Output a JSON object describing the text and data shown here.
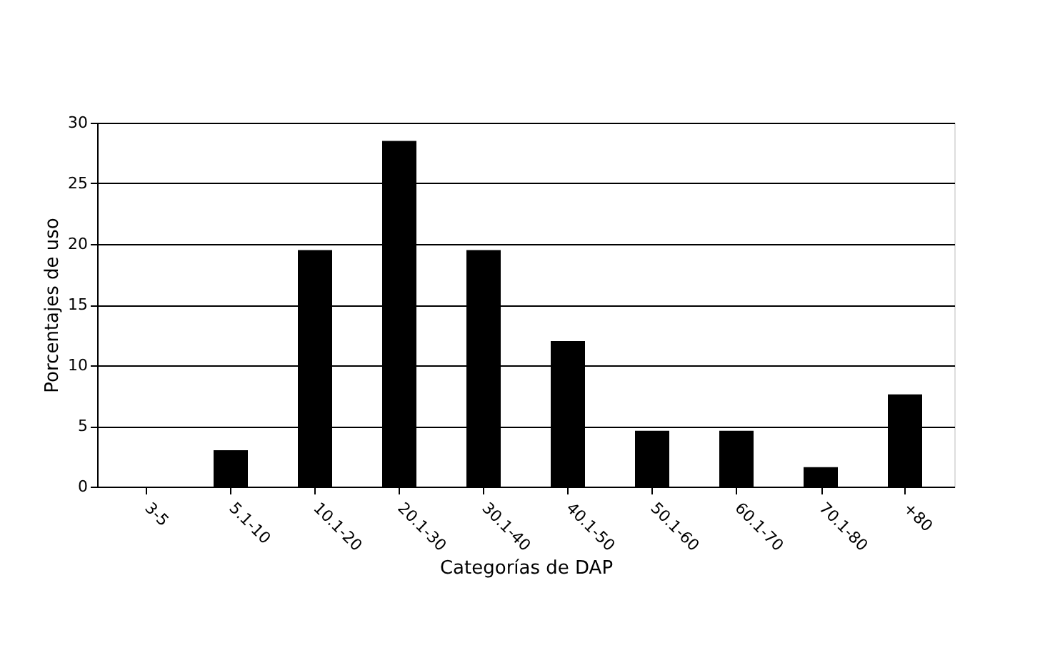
{
  "chart_data": {
    "type": "bar",
    "xlabel": "Categorías de DAP",
    "ylabel": "Porcentajes de uso",
    "categories": [
      "3-5",
      "5.1-10",
      "10.1-20",
      "20.1-30",
      "30.1-40",
      "40.1-50",
      "50.1-60",
      "60.1-70",
      "70.1-80",
      "+80"
    ],
    "values": [
      0,
      3.0,
      19.5,
      28.5,
      19.5,
      12.0,
      4.6,
      4.6,
      1.6,
      7.6
    ],
    "color": "#000000",
    "ylim": [
      0,
      30
    ],
    "yticks": [
      0,
      5,
      10,
      15,
      20,
      25,
      30
    ],
    "grid": "y"
  }
}
